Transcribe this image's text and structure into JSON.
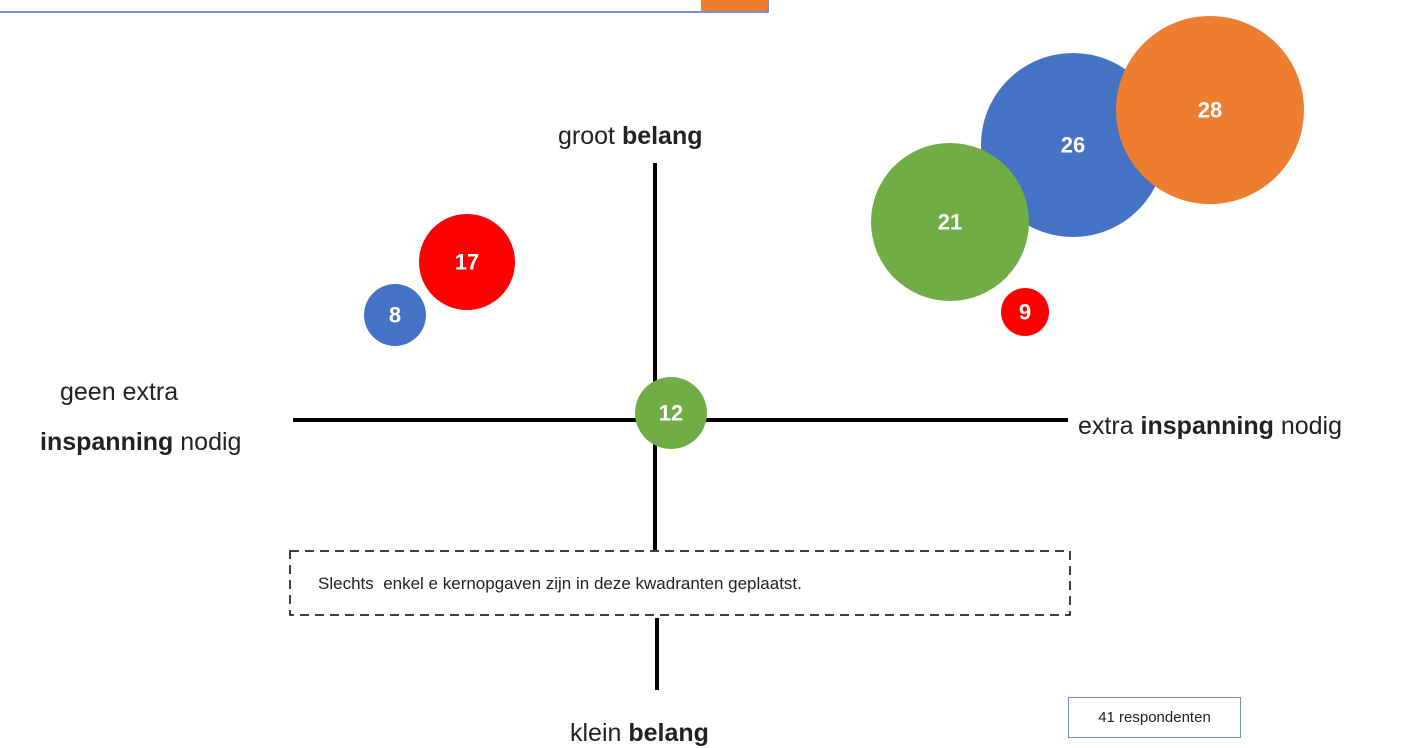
{
  "diagram": {
    "axis_labels": {
      "top": [
        "groot",
        "belang"
      ],
      "bottom": [
        "klein",
        "belang"
      ],
      "left_line1": "geen extra",
      "left_line2": [
        "inspanning",
        "nodig"
      ],
      "right": [
        "extra",
        "inspanning",
        "nodig"
      ]
    },
    "note": "Slechts  enkel e kernopgaven zijn in deze kwadranten geplaatst.",
    "respondents": "41 respondenten",
    "bubbles": [
      {
        "label": "26",
        "color": "#4472c4"
      },
      {
        "label": "28",
        "color": "#ed7d31"
      },
      {
        "label": "21",
        "color": "#70ad47"
      },
      {
        "label": "9",
        "color": "#ff0000"
      },
      {
        "label": "8",
        "color": "#4472c4"
      },
      {
        "label": "17",
        "color": "#ff0000"
      },
      {
        "label": "12",
        "color": "#70ad47"
      }
    ]
  }
}
